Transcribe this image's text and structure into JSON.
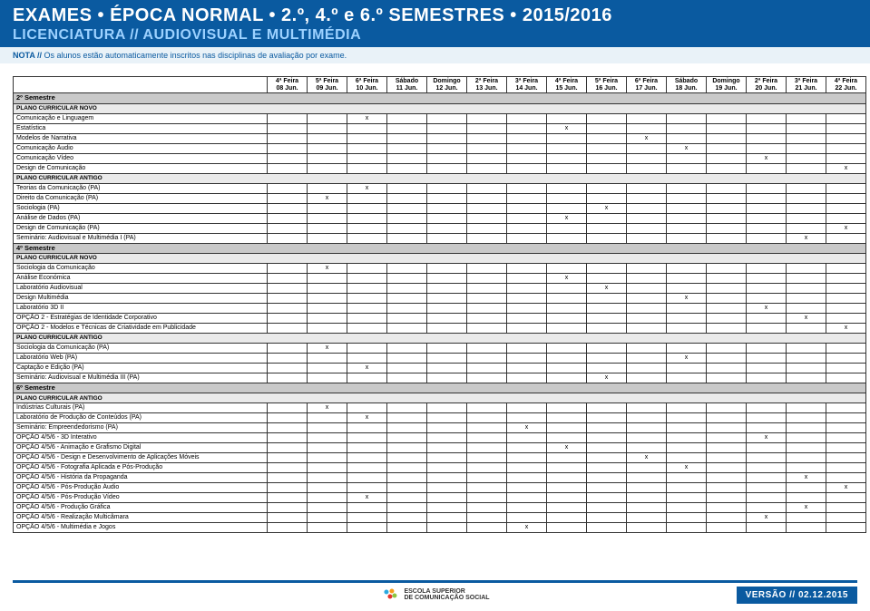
{
  "header": {
    "line1": "EXAMES • ÉPOCA NORMAL • 2.º, 4.º e 6.º SEMESTRES • 2015/2016",
    "line2": "LICENCIATURA // AUDIOVISUAL E MULTIMÉDIA",
    "note_prefix": "NOTA // ",
    "note_body": "Os alunos estão automaticamente inscritos nas disciplinas de avaliação por exame."
  },
  "days": [
    {
      "dow": "4ª Feira",
      "date": "08 Jun."
    },
    {
      "dow": "5ª Feira",
      "date": "09 Jun."
    },
    {
      "dow": "6ª Feira",
      "date": "10 Jun."
    },
    {
      "dow": "Sábado",
      "date": "11 Jun."
    },
    {
      "dow": "Domingo",
      "date": "12 Jun."
    },
    {
      "dow": "2ª Feira",
      "date": "13 Jun."
    },
    {
      "dow": "3ª Feira",
      "date": "14 Jun."
    },
    {
      "dow": "4ª Feira",
      "date": "15 Jun."
    },
    {
      "dow": "5ª Feira",
      "date": "16 Jun."
    },
    {
      "dow": "6ª Feira",
      "date": "17 Jun."
    },
    {
      "dow": "Sábado",
      "date": "18 Jun."
    },
    {
      "dow": "Domingo",
      "date": "19 Jun."
    },
    {
      "dow": "2ª Feira",
      "date": "20 Jun."
    },
    {
      "dow": "3ª Feira",
      "date": "21 Jun."
    },
    {
      "dow": "4ª Feira",
      "date": "22 Jun."
    }
  ],
  "rows": [
    {
      "type": "section",
      "label": "2º Semestre"
    },
    {
      "type": "plano",
      "label": "PLANO CURRICULAR NOVO"
    },
    {
      "type": "course",
      "label": "Comunicação e Linguagem",
      "marks": [
        2
      ]
    },
    {
      "type": "course",
      "label": "Estatística",
      "marks": [
        7
      ]
    },
    {
      "type": "course",
      "label": "Modelos de Narrativa",
      "marks": [
        9
      ]
    },
    {
      "type": "course",
      "label": "Comunicação Áudio",
      "marks": [
        10
      ]
    },
    {
      "type": "course",
      "label": "Comunicação Vídeo",
      "marks": [
        12
      ]
    },
    {
      "type": "course",
      "label": "Design de Comunicação",
      "marks": [
        14
      ]
    },
    {
      "type": "plano",
      "label": "PLANO CURRICULAR ANTIGO"
    },
    {
      "type": "course",
      "label": "Teorias da Comunicação (PA)",
      "marks": [
        2
      ]
    },
    {
      "type": "course",
      "label": "Direito da Comunicação (PA)",
      "marks": [
        1
      ]
    },
    {
      "type": "course",
      "label": "Sociologia (PA)",
      "marks": [
        8
      ]
    },
    {
      "type": "course",
      "label": "Análise de Dados (PA)",
      "marks": [
        7
      ]
    },
    {
      "type": "course",
      "label": "Design de Comunicação (PA)",
      "marks": [
        14
      ]
    },
    {
      "type": "course",
      "label": "Seminário: Audiovisual e Multimédia I (PA)",
      "marks": [
        13
      ]
    },
    {
      "type": "section",
      "label": "4º Semestre"
    },
    {
      "type": "plano",
      "label": "PLANO CURRICULAR NOVO"
    },
    {
      "type": "course",
      "label": "Sociologia da Comunicação",
      "marks": [
        1
      ]
    },
    {
      "type": "course",
      "label": "Análise Económica",
      "marks": [
        7
      ]
    },
    {
      "type": "course",
      "label": "Laboratório Audiovisual",
      "marks": [
        8
      ]
    },
    {
      "type": "course",
      "label": "Design Multimédia",
      "marks": [
        10
      ]
    },
    {
      "type": "course",
      "label": "Laboratório 3D II",
      "marks": [
        12
      ]
    },
    {
      "type": "course",
      "label": "OPÇÃO 2 - Estratégias de Identidade Corporativo",
      "marks": [
        13
      ]
    },
    {
      "type": "course",
      "label": "OPÇÃO 2 - Modelos e Técnicas de Criatividade em Publicidade",
      "marks": [
        14
      ]
    },
    {
      "type": "plano",
      "label": "PLANO CURRICULAR ANTIGO"
    },
    {
      "type": "course",
      "label": "Sociologia da Comunicação (PA)",
      "marks": [
        1
      ]
    },
    {
      "type": "course",
      "label": "Laboratório Web (PA)",
      "marks": [
        10
      ]
    },
    {
      "type": "course",
      "label": "Captação e Edição (PA)",
      "marks": [
        2
      ]
    },
    {
      "type": "course",
      "label": "Seminário: Audiovisual e Multimédia III (PA)",
      "marks": [
        8
      ]
    },
    {
      "type": "section",
      "label": "6º Semestre"
    },
    {
      "type": "plano",
      "label": "PLANO CURRICULAR ANTIGO"
    },
    {
      "type": "course",
      "label": "Indústrias Culturais (PA)",
      "marks": [
        1
      ]
    },
    {
      "type": "course",
      "label": "Laboratório de Produção de Conteúdos (PA)",
      "marks": [
        2
      ]
    },
    {
      "type": "course",
      "label": "Seminário: Empreendedorismo (PA)",
      "marks": [
        6
      ]
    },
    {
      "type": "course",
      "label": "OPÇÃO 4/5/6 - 3D Interativo",
      "marks": [
        12
      ]
    },
    {
      "type": "course",
      "label": "OPÇÃO 4/5/6 - Animação e Grafismo Digital",
      "marks": [
        7
      ]
    },
    {
      "type": "course",
      "label": "OPÇÃO 4/5/6 - Design e Desenvolvimento de Aplicações Móveis",
      "marks": [
        9
      ]
    },
    {
      "type": "course",
      "label": "OPÇÃO 4/5/6 - Fotografia Aplicada e Pós-Produção",
      "marks": [
        10
      ]
    },
    {
      "type": "course",
      "label": "OPÇÃO 4/5/6 - História da Propaganda",
      "marks": [
        13
      ]
    },
    {
      "type": "course",
      "label": "OPÇÃO 4/5/6 - Pós-Produção Áudio",
      "marks": [
        14
      ]
    },
    {
      "type": "course",
      "label": "OPÇÃO 4/5/6 - Pós-Produção Vídeo",
      "marks": [
        2
      ]
    },
    {
      "type": "course",
      "label": "OPÇÃO 4/5/6 - Produção Gráfica",
      "marks": [
        13
      ]
    },
    {
      "type": "course",
      "label": "OPÇÃO 4/5/6 - Realização Multicâmara",
      "marks": [
        12
      ]
    },
    {
      "type": "course",
      "label": "OPÇÃO 4/5/6 - Multimédia e Jogos",
      "marks": [
        6
      ]
    }
  ],
  "footer": {
    "logo_top": "ESCOLA SUPERIOR",
    "logo_bottom": "DE COMUNICAÇÃO SOCIAL",
    "version_label": "VERSÃO // ",
    "version_value": "02.12.2015"
  },
  "colors": {
    "brand_blue": "#0a5aa0",
    "light_blue": "#9cd1ff",
    "note_bg": "#e9f2f8",
    "section_bg": "#c9c9c9",
    "plano_bg": "#eaeaea",
    "border": "#333333",
    "bg": "#ffffff"
  }
}
